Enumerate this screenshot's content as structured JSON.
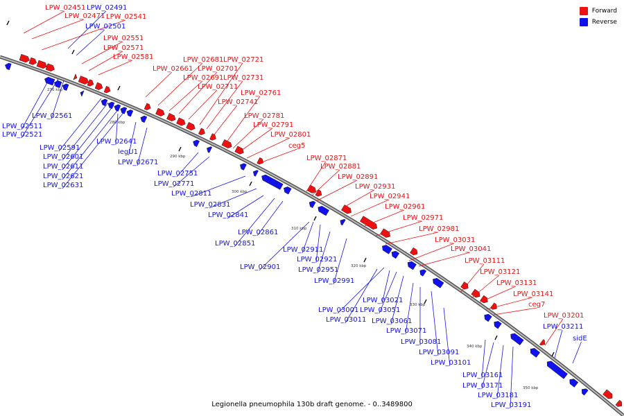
{
  "caption": "Legionella pneumophila 130b draft genome. - 0..3489800",
  "legend": {
    "items": [
      {
        "label": "Forward",
        "color": "#ee1111"
      },
      {
        "label": "Reverse",
        "color": "#1111ee"
      }
    ]
  },
  "colors": {
    "forward": "#ee1111",
    "reverse": "#1111ee",
    "backbone": "#888888"
  },
  "ticks": [
    "270 kbp",
    "280 kbp",
    "290 kbp",
    "300 kbp",
    "310 kbp",
    "320 kbp",
    "330 kbp",
    "340 kbp",
    "350 kbp"
  ],
  "forward_labels": [
    "LPW_02451",
    "LPW_02471",
    "LPW_02541",
    "LPW_02551",
    "LPW_02571",
    "LPW_02581",
    "LPW_02661",
    "LPW_02681",
    "LPW_02691",
    "LPW_02701",
    "LPW_02711",
    "LPW_02721",
    "LPW_02731",
    "LPW_02741",
    "LPW_02761",
    "LPW_02781",
    "LPW_02791",
    "LPW_02801",
    "ceg5",
    "LPW_02871",
    "LPW_02881",
    "LPW_02891",
    "LPW_02931",
    "LPW_02941",
    "LPW_02961",
    "LPW_02971",
    "LPW_02981",
    "LPW_03031",
    "LPW_03041",
    "LPW_03111",
    "LPW_03121",
    "LPW_03131",
    "LPW_03141",
    "ceg7",
    "LPW_03201"
  ],
  "reverse_labels": [
    "LPW_02491",
    "LPW_02501",
    "LPW_02561",
    "LPW_02511",
    "LPW_02521",
    "LPW_02591",
    "LPW_02641",
    "LPW_02601",
    "LPW_02611",
    "LPW_02621",
    "LPW_02631",
    "legU1",
    "LPW_02671",
    "LPW_02751",
    "LPW_02771",
    "LPW_02811",
    "LPW_02831",
    "LPW_02841",
    "LPW_02861",
    "LPW_02851",
    "LPW_02911",
    "LPW_02921",
    "LPW_02901",
    "LPW_02951",
    "LPW_02991",
    "LPW_03021",
    "LPW_03001",
    "LPW_03051",
    "LPW_03011",
    "LPW_03061",
    "LPW_03071",
    "LPW_03081",
    "LPW_03091",
    "LPW_03101",
    "LPW_03161",
    "LPW_03171",
    "LPW_03181",
    "LPW_03191",
    "LPW_03211",
    "sidE"
  ]
}
